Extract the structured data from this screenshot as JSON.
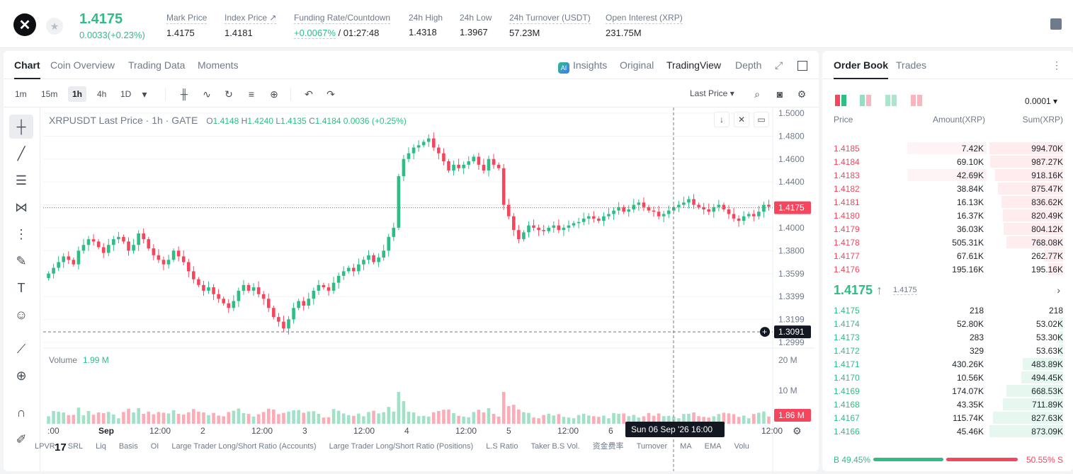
{
  "ticker": {
    "last_price": "1.4175",
    "change": "0.0033(+0.23%)",
    "stats": [
      {
        "label": "Mark Price",
        "value": "1.4175"
      },
      {
        "label": "Index Price ↗",
        "value": "1.4181"
      },
      {
        "label": "Funding Rate/Countdown",
        "value_green": "+0.0067%",
        "value": "/ 01:27:48"
      },
      {
        "label": "24h High",
        "value": "1.4318"
      },
      {
        "label": "24h Low",
        "value": "1.3967"
      },
      {
        "label": "24h Turnover (USDT)",
        "value": "57.23M"
      },
      {
        "label": "Open Interest (XRP)",
        "value": "231.75M"
      }
    ]
  },
  "chart_tabs": [
    "Chart",
    "Coin Overview",
    "Trading Data",
    "Moments"
  ],
  "chart_views": {
    "insights": "Insights",
    "ai_badge": "AI",
    "original": "Original",
    "tradingview": "TradingView",
    "depth": "Depth"
  },
  "timeframes": [
    "1m",
    "15m",
    "1h",
    "4h",
    "1D"
  ],
  "price_type": "Last Price ▾",
  "legend": {
    "title": "XRPUSDT Last Price · 1h · GATE",
    "o": "O",
    "o_val": "1.4148",
    "h": "H",
    "h_val": "1.4240",
    "l": "L",
    "l_val": "1.4135",
    "c": "C",
    "c_val": "1.4184",
    "chg": "0.0036 (+0.25%)"
  },
  "volume_legend": {
    "label": "Volume",
    "value": "1.99 M"
  },
  "price_axis": [
    "1.5000",
    "1.4800",
    "1.4600",
    "1.4400",
    "1.4200",
    "1.4000",
    "1.3800",
    "1.3599",
    "1.3399",
    "1.3199",
    "1.2999"
  ],
  "volume_axis": [
    "20 M",
    "10 M"
  ],
  "current_price_label": "1.4175",
  "crosshair_price_label": "1.3091",
  "current_volume_label": "1.86 M",
  "time_axis": [
    ":00",
    "Sep",
    "12:00",
    "2",
    "12:00",
    "3",
    "12:00",
    "4",
    "12:00",
    "5",
    "12:00",
    "6",
    "12:00"
  ],
  "crosshair_time_label": "Sun 06 Sep '26   16:00",
  "tv_logo": "17",
  "indicators": [
    "LPVR",
    "SRL",
    "Liq",
    "Basis",
    "OI",
    "Large Trader Long/Short Ratio (Accounts)",
    "Large Trader Long/Short Ratio (Positions)",
    "L.S Ratio",
    "Taker B.S Vol.",
    "资金费率",
    "Turnover",
    "MA",
    "EMA",
    "Volu"
  ],
  "colors": {
    "up": "#2ebd85",
    "down": "#f6465d"
  },
  "chart_data": {
    "type": "candlestick",
    "title": "XRPUSDT Last Price · 1h · GATE",
    "ylim": [
      1.29,
      1.5
    ],
    "close_series": [
      1.36,
      1.365,
      1.37,
      1.375,
      1.372,
      1.368,
      1.38,
      1.385,
      1.39,
      1.388,
      1.383,
      1.378,
      1.385,
      1.39,
      1.392,
      1.388,
      1.38,
      1.385,
      1.395,
      1.39,
      1.382,
      1.376,
      1.372,
      1.368,
      1.372,
      1.38,
      1.375,
      1.37,
      1.362,
      1.355,
      1.35,
      1.345,
      1.348,
      1.342,
      1.338,
      1.334,
      1.33,
      1.336,
      1.345,
      1.35,
      1.345,
      1.348,
      1.342,
      1.338,
      1.33,
      1.322,
      1.318,
      1.312,
      1.32,
      1.33,
      1.336,
      1.332,
      1.338,
      1.345,
      1.35,
      1.348,
      1.345,
      1.352,
      1.358,
      1.362,
      1.365,
      1.362,
      1.368,
      1.372,
      1.376,
      1.37,
      1.374,
      1.38,
      1.392,
      1.4,
      1.445,
      1.46,
      1.465,
      1.47,
      1.472,
      1.475,
      1.478,
      1.47,
      1.465,
      1.458,
      1.45,
      1.455,
      1.452,
      1.455,
      1.458,
      1.462,
      1.455,
      1.45,
      1.46,
      1.455,
      1.452,
      1.42,
      1.41,
      1.398,
      1.39,
      1.396,
      1.402,
      1.4,
      1.398,
      1.397,
      1.4,
      1.402,
      1.398,
      1.4,
      1.402,
      1.404,
      1.405,
      1.408,
      1.41,
      1.408,
      1.406,
      1.41,
      1.412,
      1.415,
      1.418,
      1.414,
      1.416,
      1.42,
      1.422,
      1.418,
      1.415,
      1.414,
      1.41,
      1.412,
      1.415,
      1.418,
      1.42,
      1.422,
      1.425,
      1.42,
      1.418,
      1.416,
      1.414,
      1.418,
      1.42,
      1.416,
      1.412,
      1.408,
      1.406,
      1.41,
      1.412,
      1.41,
      1.414,
      1.42,
      1.4184
    ],
    "open_series_direction": "derived",
    "annotations": {
      "last_price": 1.4175,
      "crosshair_price": 1.3091
    }
  },
  "orderbook": {
    "tabs": [
      "Order Book",
      "Trades"
    ],
    "precision": "0.0001 ▾",
    "headers": {
      "price": "Price",
      "amount": "Amount(XRP)",
      "sum": "Sum(XRP)"
    },
    "asks": [
      {
        "price": "1.4185",
        "amount": "7.42K",
        "sum": "994.70K",
        "amt_pct": 0.13,
        "sum_pct": 1.0
      },
      {
        "price": "1.4184",
        "amount": "69.10K",
        "sum": "987.27K",
        "amt_pct": 0.0,
        "sum_pct": 0.99
      },
      {
        "price": "1.4183",
        "amount": "42.69K",
        "sum": "918.16K",
        "amt_pct": 0.13,
        "sum_pct": 0.92
      },
      {
        "price": "1.4182",
        "amount": "38.84K",
        "sum": "875.47K",
        "amt_pct": 0.0,
        "sum_pct": 0.88
      },
      {
        "price": "1.4181",
        "amount": "16.13K",
        "sum": "836.62K",
        "amt_pct": 0.0,
        "sum_pct": 0.84
      },
      {
        "price": "1.4180",
        "amount": "16.37K",
        "sum": "820.49K",
        "amt_pct": 0.0,
        "sum_pct": 0.82
      },
      {
        "price": "1.4179",
        "amount": "36.03K",
        "sum": "804.12K",
        "amt_pct": 0.0,
        "sum_pct": 0.81
      },
      {
        "price": "1.4178",
        "amount": "505.31K",
        "sum": "768.08K",
        "amt_pct": 0.0,
        "sum_pct": 0.77
      },
      {
        "price": "1.4177",
        "amount": "67.61K",
        "sum": "262.77K",
        "amt_pct": 0.0,
        "sum_pct": 0.26
      },
      {
        "price": "1.4176",
        "amount": "195.16K",
        "sum": "195.16K",
        "amt_pct": 0.0,
        "sum_pct": 0.2
      }
    ],
    "mid": {
      "price": "1.4175 ↑",
      "mark": "1.4175"
    },
    "bids": [
      {
        "price": "1.4175",
        "amount": "218",
        "sum": "218",
        "sum_pct": 0.0
      },
      {
        "price": "1.4174",
        "amount": "52.80K",
        "sum": "53.02K",
        "sum_pct": 0.06
      },
      {
        "price": "1.4173",
        "amount": "283",
        "sum": "53.30K",
        "sum_pct": 0.06
      },
      {
        "price": "1.4172",
        "amount": "329",
        "sum": "53.63K",
        "sum_pct": 0.06
      },
      {
        "price": "1.4171",
        "amount": "430.26K",
        "sum": "483.89K",
        "sum_pct": 0.55
      },
      {
        "price": "1.4170",
        "amount": "10.56K",
        "sum": "494.45K",
        "sum_pct": 0.57
      },
      {
        "price": "1.4169",
        "amount": "174.07K",
        "sum": "668.53K",
        "sum_pct": 0.77
      },
      {
        "price": "1.4168",
        "amount": "43.35K",
        "sum": "711.89K",
        "sum_pct": 0.82
      },
      {
        "price": "1.4167",
        "amount": "115.74K",
        "sum": "827.63K",
        "sum_pct": 0.95
      },
      {
        "price": "1.4166",
        "amount": "45.46K",
        "sum": "873.09K",
        "sum_pct": 1.0
      }
    ],
    "ratio": {
      "buy_label": "B",
      "buy": "49.45%",
      "sell_label": "S",
      "sell": "50.55%",
      "buy_pct": 49.45
    }
  }
}
